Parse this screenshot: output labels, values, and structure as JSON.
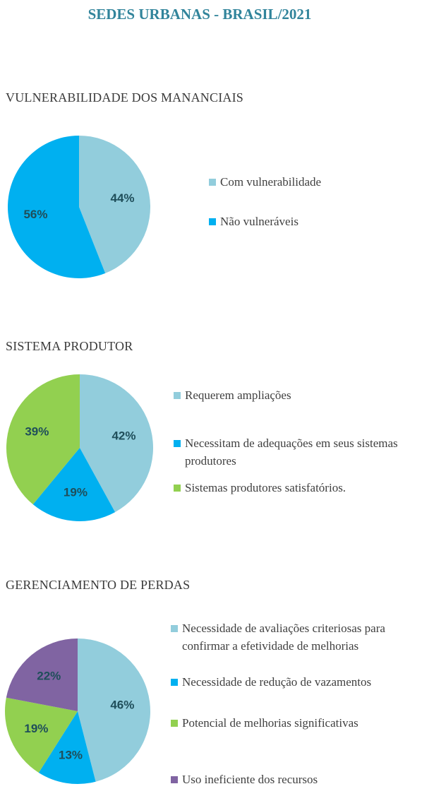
{
  "title": "SEDES URBANAS - BRASIL/2021",
  "chart_data": [
    {
      "type": "pie",
      "title": "VULNERABILIDADE DOS MANANCIAIS",
      "categories": [
        "Com vulnerabilidade",
        "Não vulneráveis"
      ],
      "values": [
        44,
        56
      ],
      "value_labels": [
        "44%",
        "56%"
      ],
      "colors": [
        "#92cddc",
        "#00b0f0"
      ]
    },
    {
      "type": "pie",
      "title": "SISTEMA PRODUTOR",
      "categories": [
        "Requerem ampliações",
        "Necessitam de adequações em seus sistemas produtores",
        "Sistemas produtores satisfatórios."
      ],
      "values": [
        42,
        19,
        39
      ],
      "value_labels": [
        "42%",
        "19%",
        "39%"
      ],
      "colors": [
        "#92cddc",
        "#00b0f0",
        "#92d050"
      ]
    },
    {
      "type": "pie",
      "title": "GERENCIAMENTO DE PERDAS",
      "categories": [
        "Necessidade de avaliações criteriosas para confirmar a efetividade de melhorias",
        "Necessidade de redução de vazamentos",
        "Potencial de melhorias significativas",
        "Uso ineficiente dos recursos"
      ],
      "values": [
        46,
        13,
        19,
        22
      ],
      "value_labels": [
        "46%",
        "13%",
        "19%",
        "22%"
      ],
      "colors": [
        "#92cddc",
        "#00b0f0",
        "#92d050",
        "#8064a2"
      ]
    }
  ]
}
